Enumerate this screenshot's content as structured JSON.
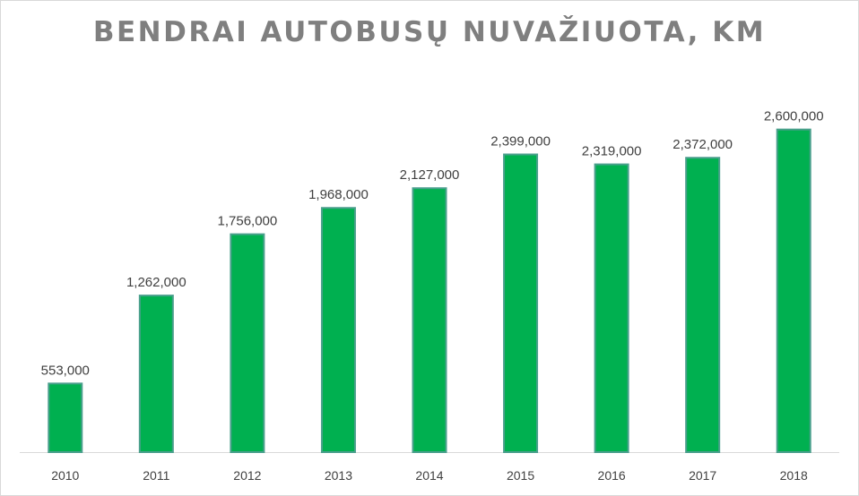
{
  "chart_data": {
    "type": "bar",
    "title": "BENDRAI AUTOBUSŲ NUVAŽIUOTA, KM",
    "xlabel": "",
    "ylabel": "",
    "categories": [
      "2010",
      "2011",
      "2012",
      "2013",
      "2014",
      "2015",
      "2016",
      "2017",
      "2018"
    ],
    "values": [
      553000,
      1262000,
      1756000,
      1968000,
      2127000,
      2399000,
      2319000,
      2372000,
      2600000
    ],
    "data_labels": [
      "553,000",
      "1,262,000",
      "1,756,000",
      "1,968,000",
      "2,127,000",
      "2,399,000",
      "2,319,000",
      "2,372,000",
      "2,600,000"
    ],
    "ylim": [
      0,
      2850000
    ],
    "grid": false,
    "legend": "none",
    "colors": {
      "bar_fill": "#00b050",
      "bar_edge": "#4a9f8c",
      "title": "#7f7f7f",
      "text": "#404040",
      "axis": "#d9d9d9"
    }
  }
}
